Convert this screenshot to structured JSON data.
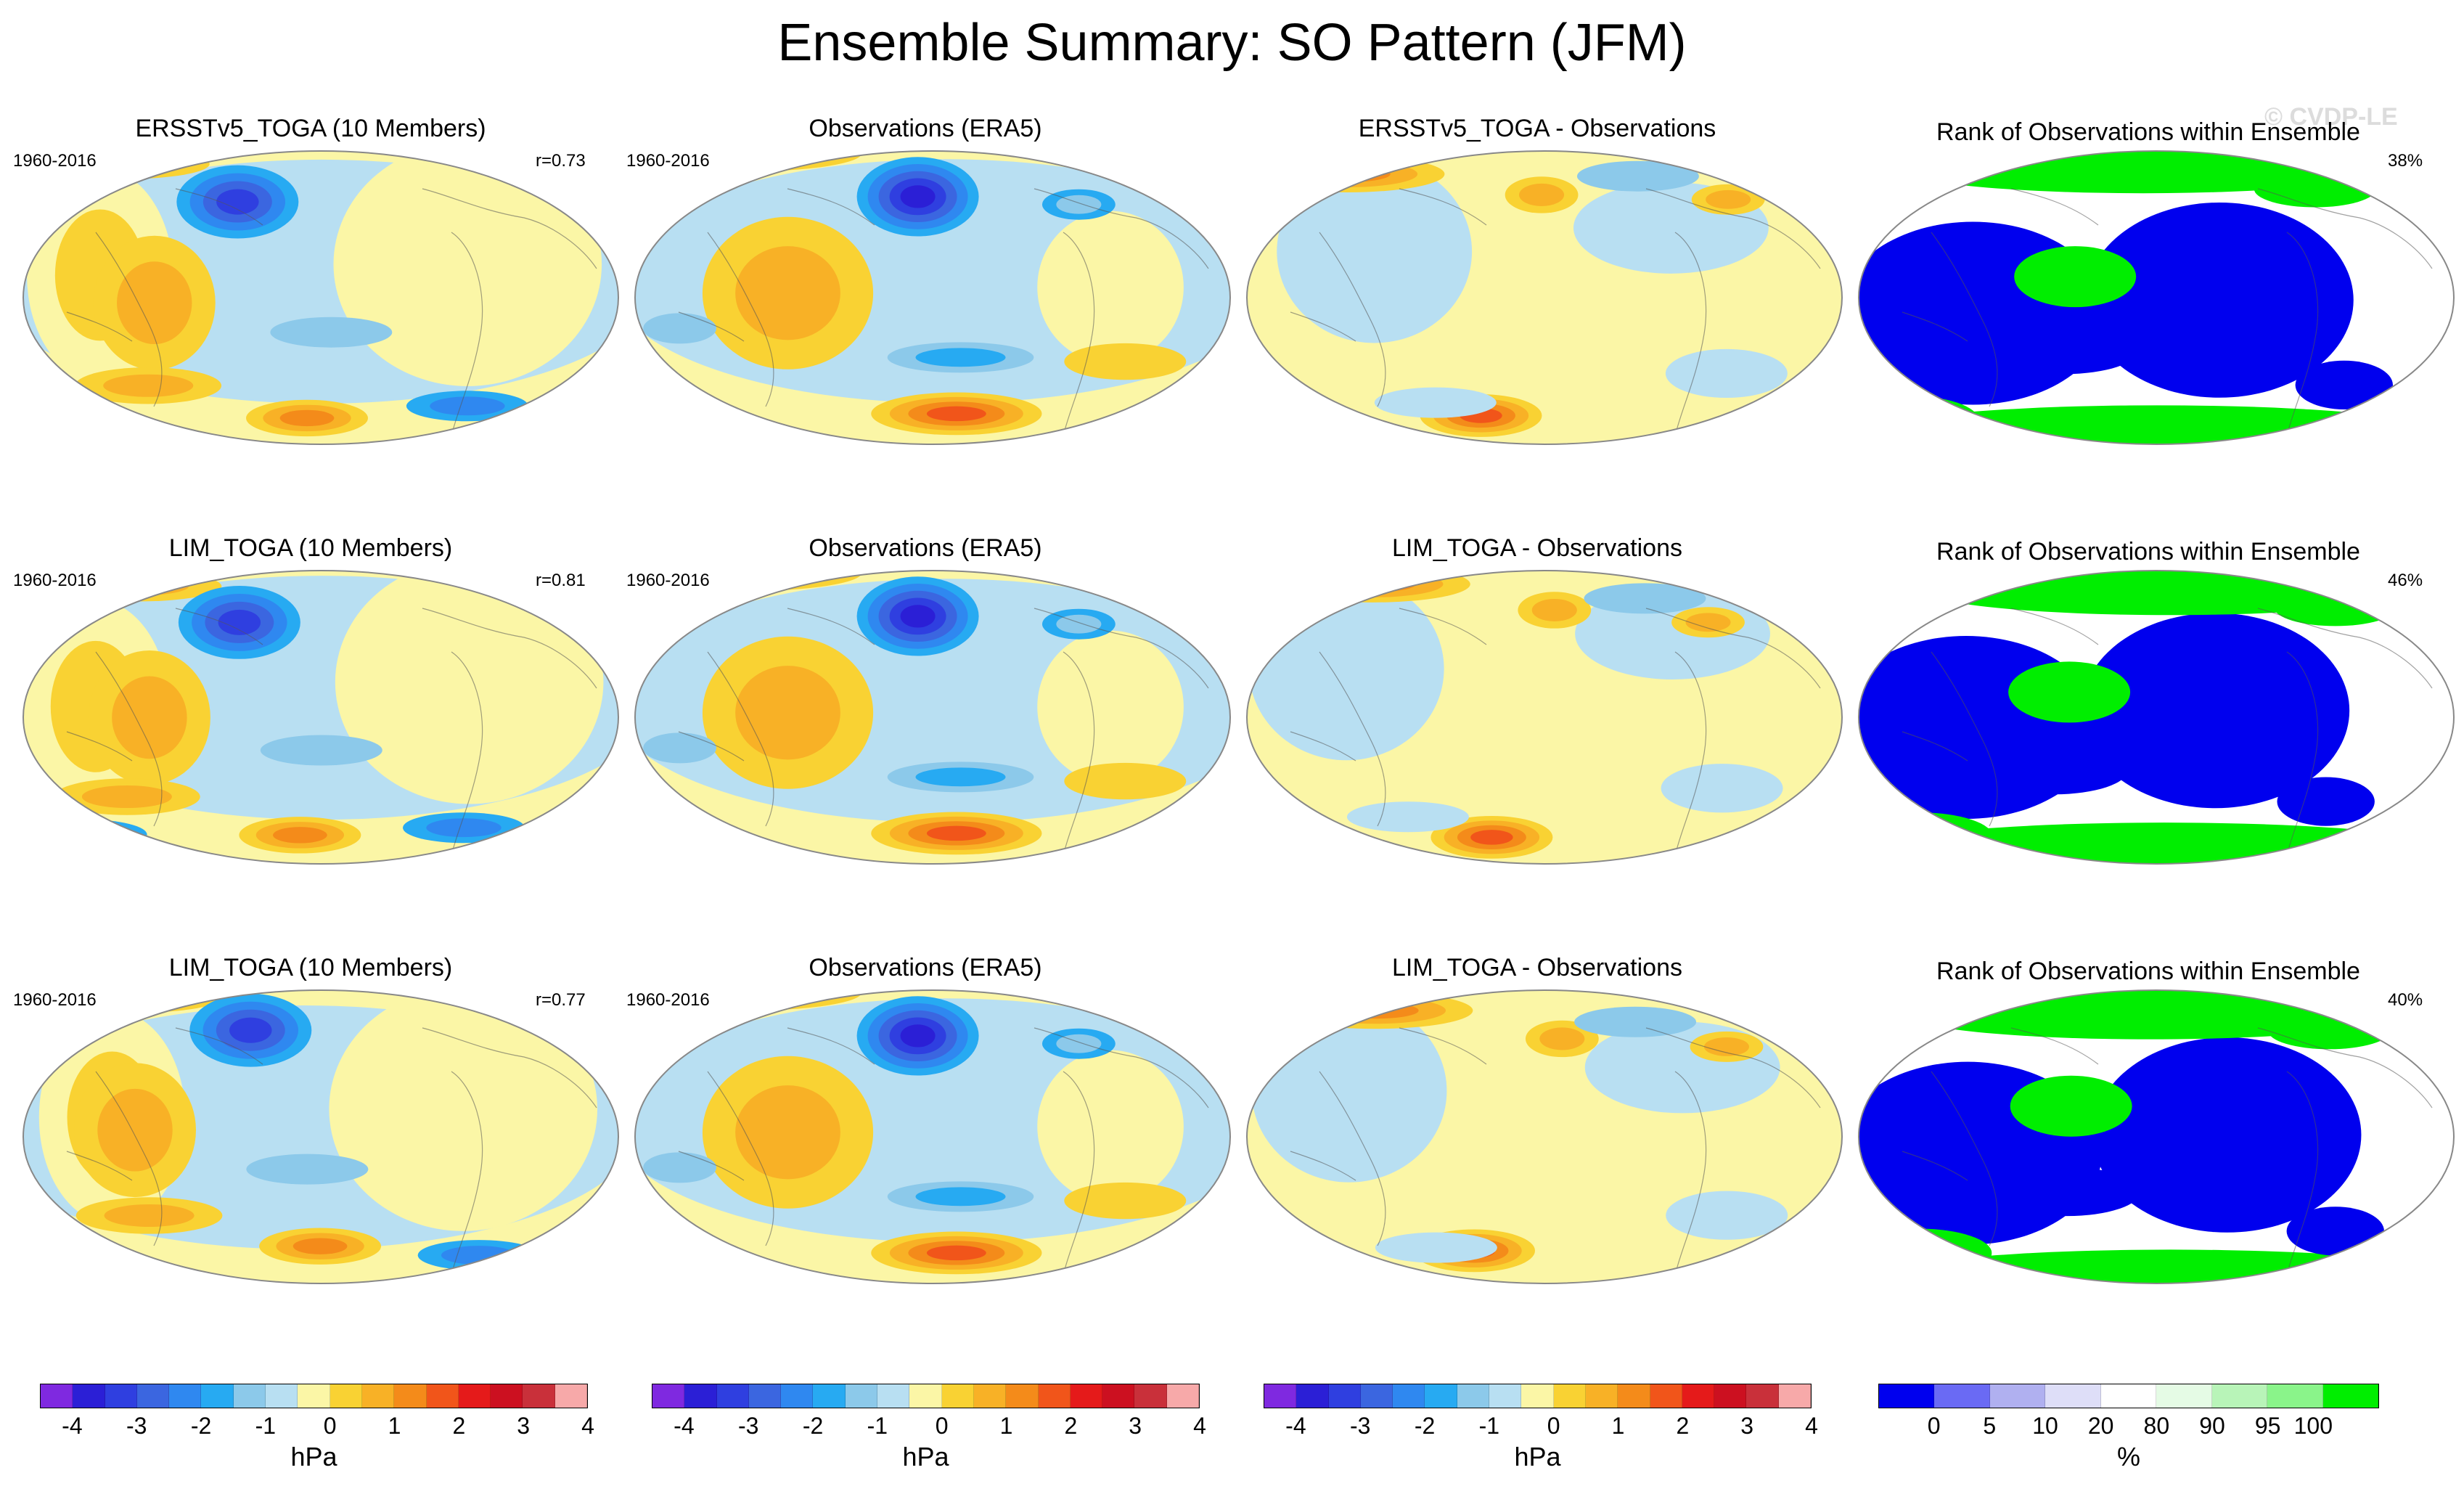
{
  "title": "Ensemble Summary: SO Pattern (JFM)",
  "watermark": "© CVDP-LE",
  "colors": {
    "diverging": [
      "#7f29e0",
      "#2b1fd6",
      "#2f3fe0",
      "#3b66e0",
      "#2f88f0",
      "#27aaf2",
      "#8cc9ea",
      "#b8dff2",
      "#fbf6a6",
      "#f9d233",
      "#f8b126",
      "#f48b1a",
      "#f1551a",
      "#e51a1a",
      "#cc1020",
      "#c9303a",
      "#f7a9a9"
    ],
    "rank": [
      "#0000ee",
      "#6a6af4",
      "#b0b0f0",
      "#dedef8",
      "#ffffff",
      "#e5fbe5",
      "#b8f4b8",
      "#8af48a",
      "#00ee00"
    ],
    "map_bg_land_line": "#333333"
  },
  "colorbars": {
    "diverging": {
      "labels": [
        "-4",
        "-3",
        "-2",
        "-1",
        "0",
        "1",
        "2",
        "3",
        "4"
      ],
      "unit": "hPa"
    },
    "rank": {
      "labels": [
        "0",
        "5",
        "10",
        "20",
        "80",
        "90",
        "95",
        "100"
      ],
      "unit": "%"
    }
  },
  "rows": [
    {
      "model": {
        "title": "ERSSTv5_TOGA (10 Members)",
        "period": "1960-2016",
        "stat": "r=0.73"
      },
      "obs": {
        "title": "Observations (ERA5)",
        "period": "1960-2016"
      },
      "diff": {
        "title": "ERSSTv5_TOGA - Observations"
      },
      "rank": {
        "title": "Rank of Observations within Ensemble",
        "stat": "38%"
      }
    },
    {
      "model": {
        "title": "LIM_TOGA (10 Members)",
        "period": "1960-2016",
        "stat": "r=0.81"
      },
      "obs": {
        "title": "Observations (ERA5)",
        "period": "1960-2016"
      },
      "diff": {
        "title": "LIM_TOGA - Observations"
      },
      "rank": {
        "title": "Rank of Observations within Ensemble",
        "stat": "46%"
      }
    },
    {
      "model": {
        "title": "LIM_TOGA (10 Members)",
        "period": "1960-2016",
        "stat": "r=0.77"
      },
      "obs": {
        "title": "Observations (ERA5)",
        "period": "1960-2016"
      },
      "diff": {
        "title": "LIM_TOGA - Observations"
      },
      "rank": {
        "title": "Rank of Observations within Ensemble",
        "stat": "40%"
      }
    }
  ]
}
